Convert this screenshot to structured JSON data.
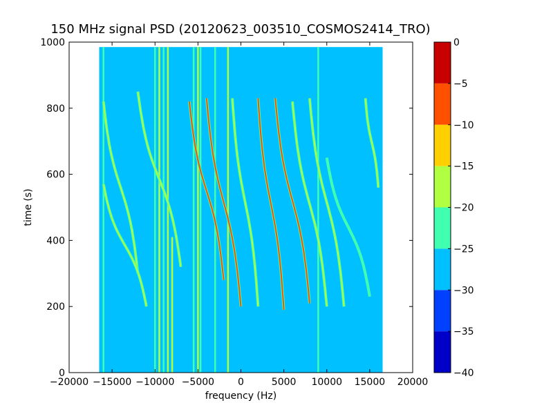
{
  "chart_data": {
    "type": "heatmap",
    "title": "150 MHz signal PSD (20120623_003510_COSMOS2414_TRO)",
    "xlabel": "frequency (Hz)",
    "ylabel": "time (s)",
    "xlim": [
      -20000,
      20000
    ],
    "ylim": [
      0,
      1000
    ],
    "xticks": [
      -20000,
      -15000,
      -10000,
      -5000,
      0,
      5000,
      10000,
      15000,
      20000
    ],
    "yticks": [
      0,
      200,
      400,
      600,
      800,
      1000
    ],
    "data_extent": {
      "x": [
        -16500,
        16500
      ],
      "y": [
        0,
        985
      ]
    },
    "background_level": -27.5,
    "colorbar": {
      "ticks": [
        0,
        -5,
        -10,
        -15,
        -20,
        -25,
        -30,
        -35,
        -40
      ],
      "levels": [
        -40,
        -35,
        -30,
        -25,
        -20,
        -15,
        -10,
        -5,
        0
      ],
      "colors": [
        "#0000c8",
        "#0040ff",
        "#00c0ff",
        "#40ffb0",
        "#b0ff40",
        "#ffd000",
        "#ff5000",
        "#c80000"
      ]
    },
    "vertical_lines": [
      {
        "x": -16000,
        "y": [
          0,
          985
        ],
        "level": -22.5
      },
      {
        "x": -10000,
        "y": [
          0,
          985
        ],
        "level": -22.5
      },
      {
        "x": -9500,
        "y": [
          0,
          985
        ],
        "level": -17.5
      },
      {
        "x": -9000,
        "y": [
          0,
          985
        ],
        "level": -22.5
      },
      {
        "x": -8500,
        "y": [
          0,
          985
        ],
        "level": -17.5
      },
      {
        "x": -8000,
        "y": [
          0,
          410
        ],
        "level": -17.5
      },
      {
        "x": -5500,
        "y": [
          0,
          985
        ],
        "level": -22.5
      },
      {
        "x": -5000,
        "y": [
          0,
          985
        ],
        "level": -17.5
      },
      {
        "x": -4700,
        "y": [
          0,
          985
        ],
        "level": -22.5
      },
      {
        "x": -3000,
        "y": [
          0,
          985
        ],
        "level": -22.5
      },
      {
        "x": -1500,
        "y": [
          0,
          985
        ],
        "level": -17.5
      },
      {
        "x": 9000,
        "y": [
          0,
          985
        ],
        "level": -22.5
      }
    ],
    "traces": [
      {
        "x_start": -16000,
        "x_end": -12000,
        "y_top": 820,
        "y_bottom": 300,
        "level": -17.5
      },
      {
        "x_start": -16000,
        "x_end": -11000,
        "y_top": 570,
        "y_bottom": 200,
        "level": -17.5
      },
      {
        "x_start": -12000,
        "x_end": -7000,
        "y_top": 850,
        "y_bottom": 320,
        "level": -17.5
      },
      {
        "x_start": -6000,
        "x_end": -2000,
        "y_top": 820,
        "y_bottom": 280,
        "level": -7.5
      },
      {
        "x_start": -4000,
        "x_end": 0,
        "y_top": 830,
        "y_bottom": 200,
        "level": -7.5
      },
      {
        "x_start": -1000,
        "x_end": 2000,
        "y_top": 830,
        "y_bottom": 200,
        "level": -17.5
      },
      {
        "x_start": 2000,
        "x_end": 5000,
        "y_top": 830,
        "y_bottom": 190,
        "level": -7.5
      },
      {
        "x_start": 4000,
        "x_end": 8000,
        "y_top": 830,
        "y_bottom": 210,
        "level": -7.5
      },
      {
        "x_start": 6000,
        "x_end": 10000,
        "y_top": 820,
        "y_bottom": 200,
        "level": -17.5
      },
      {
        "x_start": 8000,
        "x_end": 12000,
        "y_top": 830,
        "y_bottom": 200,
        "level": -17.5
      },
      {
        "x_start": 10000,
        "x_end": 15000,
        "y_top": 650,
        "y_bottom": 230,
        "level": -22.5
      },
      {
        "x_start": 14500,
        "x_end": 16000,
        "y_top": 830,
        "y_bottom": 560,
        "level": -17.5
      }
    ]
  }
}
